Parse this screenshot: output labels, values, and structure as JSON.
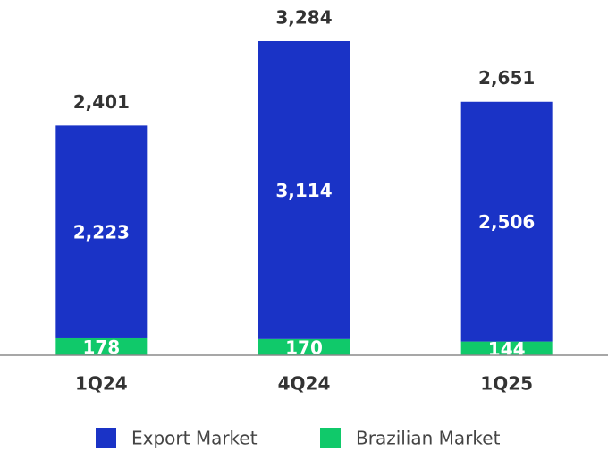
{
  "chart_data": {
    "type": "stacked-bar",
    "categories": [
      "1Q24",
      "4Q24",
      "1Q25"
    ],
    "series": [
      {
        "name": "Brazilian Market",
        "color": "#10c96a",
        "values": [
          178,
          170,
          144
        ],
        "value_labels": [
          "178",
          "170",
          "144"
        ]
      },
      {
        "name": "Export Market",
        "color": "#1a33c6",
        "values": [
          2223,
          3114,
          2506
        ],
        "value_labels": [
          "2,223",
          "3,114",
          "2,506"
        ]
      }
    ],
    "totals": [
      2401,
      3284,
      2651
    ],
    "total_labels": [
      "2,401",
      "3,284",
      "2,651"
    ],
    "legend_order": [
      1,
      0
    ]
  }
}
